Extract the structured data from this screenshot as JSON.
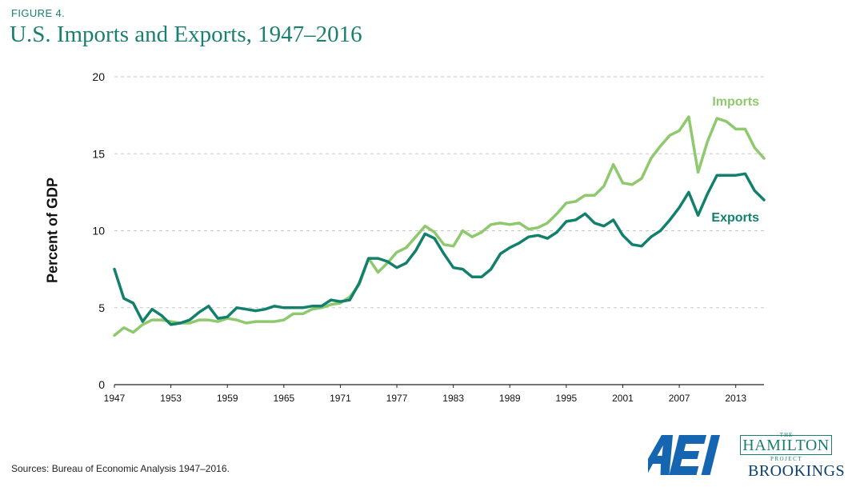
{
  "figure_label": "FIGURE 4.",
  "title": "U.S. Imports and Exports, 1947–2016",
  "source": "Sources: Bureau of Economic Analysis 1947–2016.",
  "logos": {
    "aei": "AEI",
    "hamilton_the": "THE",
    "hamilton": "HAMILTON",
    "hamilton_project": "PROJECT",
    "brookings": "BROOKINGS"
  },
  "colors": {
    "imports": "#8fc96d",
    "exports": "#13806c",
    "title": "#1a7f6e",
    "aei": "#1565b0",
    "grid": "#c8c8c8"
  },
  "chart_data": {
    "type": "line",
    "ylabel": "Percent of GDP",
    "xlabel": "",
    "xlim": [
      1947,
      2016
    ],
    "ylim": [
      0,
      20
    ],
    "yticks": [
      0,
      5,
      10,
      15,
      20
    ],
    "xticks": [
      1947,
      1953,
      1959,
      1965,
      1971,
      1977,
      1983,
      1989,
      1995,
      2001,
      2007,
      2013
    ],
    "grid": "horizontal dashed",
    "legend": "inline labels at line ends",
    "x": [
      1947,
      1948,
      1949,
      1950,
      1951,
      1952,
      1953,
      1954,
      1955,
      1956,
      1957,
      1958,
      1959,
      1960,
      1961,
      1962,
      1963,
      1964,
      1965,
      1966,
      1967,
      1968,
      1969,
      1970,
      1971,
      1972,
      1973,
      1974,
      1975,
      1976,
      1977,
      1978,
      1979,
      1980,
      1981,
      1982,
      1983,
      1984,
      1985,
      1986,
      1987,
      1988,
      1989,
      1990,
      1991,
      1992,
      1993,
      1994,
      1995,
      1996,
      1997,
      1998,
      1999,
      2000,
      2001,
      2002,
      2003,
      2004,
      2005,
      2006,
      2007,
      2008,
      2009,
      2010,
      2011,
      2012,
      2013,
      2014,
      2015,
      2016
    ],
    "series": [
      {
        "name": "Imports",
        "values": [
          3.2,
          3.7,
          3.4,
          3.9,
          4.2,
          4.2,
          4.1,
          4.0,
          4.0,
          4.2,
          4.2,
          4.1,
          4.3,
          4.2,
          4.0,
          4.1,
          4.1,
          4.1,
          4.2,
          4.6,
          4.6,
          4.9,
          5.0,
          5.2,
          5.3,
          5.7,
          6.5,
          8.2,
          7.3,
          7.9,
          8.6,
          8.9,
          9.6,
          10.3,
          9.9,
          9.1,
          9.0,
          10.0,
          9.6,
          9.9,
          10.4,
          10.5,
          10.4,
          10.5,
          10.1,
          10.2,
          10.5,
          11.1,
          11.8,
          11.9,
          12.3,
          12.3,
          12.9,
          14.3,
          13.1,
          13.0,
          13.4,
          14.7,
          15.5,
          16.2,
          16.5,
          17.4,
          13.8,
          15.8,
          17.3,
          17.1,
          16.6,
          16.6,
          15.4,
          14.7
        ]
      },
      {
        "name": "Exports",
        "values": [
          7.5,
          5.6,
          5.3,
          4.1,
          4.9,
          4.5,
          3.9,
          4.0,
          4.2,
          4.7,
          5.1,
          4.3,
          4.4,
          5.0,
          4.9,
          4.8,
          4.9,
          5.1,
          5.0,
          5.0,
          5.0,
          5.1,
          5.1,
          5.5,
          5.4,
          5.5,
          6.6,
          8.2,
          8.2,
          8.0,
          7.6,
          7.9,
          8.7,
          9.8,
          9.5,
          8.5,
          7.6,
          7.5,
          7.0,
          7.0,
          7.5,
          8.5,
          8.9,
          9.2,
          9.6,
          9.7,
          9.5,
          9.9,
          10.6,
          10.7,
          11.1,
          10.5,
          10.3,
          10.7,
          9.7,
          9.1,
          9.0,
          9.6,
          10.0,
          10.7,
          11.5,
          12.5,
          11.0,
          12.4,
          13.6,
          13.6,
          13.6,
          13.7,
          12.6,
          12.0
        ]
      }
    ]
  }
}
